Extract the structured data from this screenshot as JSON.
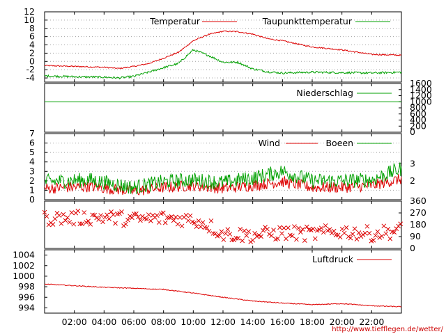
{
  "footer_url": "http://www.tiefflegen.de/wetter/",
  "colors": {
    "red": "#dd0000",
    "green": "#00a000",
    "grid": "#a0a0a0",
    "axis": "#000000"
  },
  "time_axis": {
    "range_hours": [
      0,
      24
    ],
    "ticks": [
      {
        "h": 2,
        "label": "02:00"
      },
      {
        "h": 4,
        "label": "04:00"
      },
      {
        "h": 6,
        "label": "06:00"
      },
      {
        "h": 8,
        "label": "08:00"
      },
      {
        "h": 10,
        "label": "10:00"
      },
      {
        "h": 12,
        "label": "12:00"
      },
      {
        "h": 14,
        "label": "14:00"
      },
      {
        "h": 16,
        "label": "16:00"
      },
      {
        "h": 18,
        "label": "18:00"
      },
      {
        "h": 20,
        "label": "20:00"
      },
      {
        "h": 22,
        "label": "22:00"
      }
    ]
  },
  "chart_data": [
    {
      "id": "temp",
      "type": "line",
      "ylim": [
        -5,
        12
      ],
      "y_ticks": [
        -4,
        -2,
        0,
        2,
        4,
        6,
        8,
        10,
        12
      ],
      "grid": true,
      "legend_position": "top-right",
      "series": [
        {
          "name": "Temperatur",
          "color": "#dd0000",
          "noise": 0.15,
          "x": [
            0,
            2,
            4,
            5,
            6,
            7,
            8,
            9,
            10,
            11,
            12,
            13,
            14,
            15,
            16,
            18,
            20,
            22,
            24
          ],
          "y": [
            -1,
            -1.2,
            -1.4,
            -1.7,
            -1.2,
            -0.5,
            0.8,
            2.2,
            5.0,
            6.5,
            7.3,
            7.2,
            6.6,
            5.5,
            5.0,
            3.5,
            2.8,
            1.7,
            1.5
          ]
        },
        {
          "name": "Taupunkttemperatur",
          "color": "#00a000",
          "noise": 0.25,
          "x": [
            0,
            2,
            4,
            5,
            6,
            7,
            8,
            9,
            10,
            11,
            12,
            13,
            14,
            15,
            16,
            18,
            20,
            22,
            24
          ],
          "y": [
            -3.5,
            -3.7,
            -3.8,
            -4.0,
            -3.6,
            -2.6,
            -1.5,
            -0.5,
            2.8,
            1.5,
            -0.2,
            -0.2,
            -1.8,
            -2.5,
            -2.8,
            -2.6,
            -2.7,
            -2.8,
            -2.6
          ]
        }
      ]
    },
    {
      "id": "rain",
      "type": "line",
      "ylim": [
        0,
        1600
      ],
      "y_ticks_right": [
        0,
        200,
        400,
        600,
        800,
        1000,
        1200,
        1400,
        1600
      ],
      "grid": false,
      "legend_position": "top-right",
      "series": [
        {
          "name": "Niederschlag",
          "color": "#00a000",
          "noise": 0,
          "x": [
            0,
            24
          ],
          "y": [
            1000,
            1000
          ]
        }
      ]
    },
    {
      "id": "wind",
      "type": "line",
      "ylim": [
        0,
        7
      ],
      "y_ticks": [
        0,
        1,
        2,
        3,
        4,
        5,
        6,
        7
      ],
      "y_ticks_right": [
        {
          "v": 2,
          "label": "2"
        },
        {
          "v": 3.8,
          "label": "3"
        }
      ],
      "grid": true,
      "legend_position": "top-right",
      "series": [
        {
          "name": "Wind",
          "color": "#dd0000",
          "noise": 0.6,
          "x": [
            0,
            3,
            6,
            8,
            10,
            12,
            14,
            16,
            18,
            20,
            22,
            24
          ],
          "y": [
            1.2,
            1.4,
            0.9,
            1.3,
            1.5,
            1.2,
            1.5,
            1.9,
            1.3,
            1.3,
            1.5,
            2.2
          ]
        },
        {
          "name": "Boeen",
          "color": "#00a000",
          "noise": 0.8,
          "x": [
            0,
            3,
            6,
            8,
            10,
            12,
            14,
            16,
            18,
            20,
            22,
            24
          ],
          "y": [
            1.9,
            2.1,
            1.3,
            1.9,
            2.1,
            1.8,
            2.3,
            3.0,
            2.0,
            2.0,
            2.1,
            3.3
          ]
        }
      ]
    },
    {
      "id": "winddir",
      "type": "scatter",
      "ylim": [
        0,
        360
      ],
      "y_ticks_right": [
        0,
        90,
        180,
        270,
        360
      ],
      "grid": false,
      "marker": "x",
      "series": [
        {
          "name": "",
          "color": "#dd0000",
          "x": [
            0,
            2,
            4,
            6,
            8,
            10,
            11,
            12,
            14,
            16,
            18,
            20,
            22,
            24
          ],
          "y": [
            230,
            230,
            240,
            220,
            230,
            220,
            180,
            110,
            100,
            120,
            110,
            130,
            110,
            140
          ]
        }
      ]
    },
    {
      "id": "pressure",
      "type": "line",
      "ylim": [
        993,
        1005
      ],
      "y_ticks": [
        994,
        996,
        998,
        1000,
        1002,
        1004
      ],
      "grid": false,
      "legend_position": "top-right",
      "series": [
        {
          "name": "Luftdruck",
          "color": "#dd0000",
          "noise": 0.08,
          "x": [
            0,
            2,
            4,
            6,
            8,
            10,
            12,
            14,
            16,
            18,
            20,
            22,
            24
          ],
          "y": [
            998.5,
            998.2,
            997.9,
            997.7,
            997.5,
            996.8,
            996.0,
            995.3,
            994.9,
            994.6,
            994.8,
            994.4,
            994.2
          ]
        }
      ]
    }
  ]
}
